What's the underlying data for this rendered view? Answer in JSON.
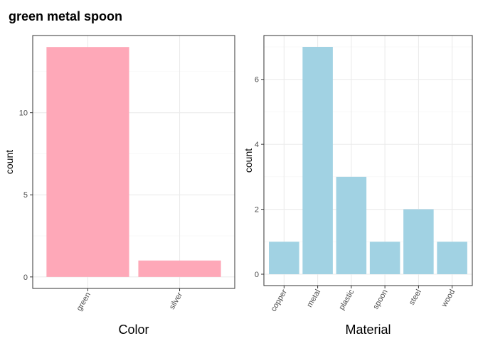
{
  "page_title": "green metal spoon",
  "colors": {
    "color_panel_bar": "#fea8b8",
    "material_panel_bar": "#a1d2e3",
    "grid_major": "#ebebeb",
    "grid_minor": "#f4f4f4",
    "panel_border": "#333333"
  },
  "chart_data": [
    {
      "type": "bar",
      "title": "",
      "xlabel": "Color",
      "ylabel": "count",
      "categories": [
        "green",
        "silver"
      ],
      "values": [
        14,
        1
      ],
      "yticks": [
        0,
        5,
        10
      ],
      "ylim": [
        -0.7,
        14.7
      ],
      "grid": true,
      "legend": "none",
      "bar_color": "#fea8b8"
    },
    {
      "type": "bar",
      "title": "",
      "xlabel": "Material",
      "ylabel": "count",
      "categories": [
        "copper",
        "metal",
        "plastic",
        "spoon",
        "steel",
        "wood"
      ],
      "values": [
        1,
        7,
        3,
        1,
        2,
        1
      ],
      "yticks": [
        0,
        2,
        4,
        6
      ],
      "ylim": [
        -0.35,
        7.35
      ],
      "grid": true,
      "legend": "none",
      "bar_color": "#a1d2e3"
    }
  ]
}
